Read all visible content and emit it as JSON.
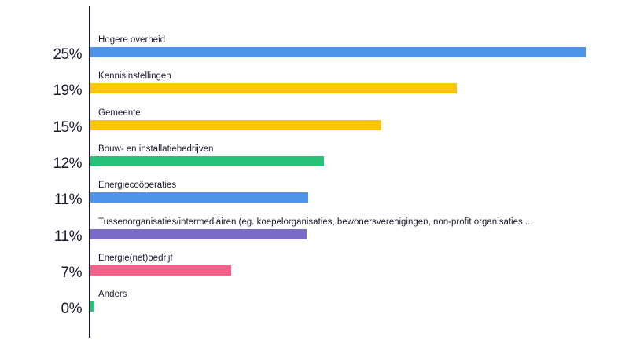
{
  "colors": {
    "blue": "#4e94e8",
    "yellow": "#fcc600",
    "green": "#27c27a",
    "purple": "#7b6bc8",
    "pink": "#fa5f8c",
    "axis": "#1a1a2e"
  },
  "chart_data": {
    "type": "bar",
    "orientation": "horizontal",
    "title": "",
    "xlabel": "",
    "ylabel": "",
    "xlim": [
      0,
      25
    ],
    "grid": false,
    "legend": "none",
    "categories": [
      "Hogere overheid",
      "Kennisinstellingen",
      "Gemeente",
      "Bouw- en installatiebedrijven",
      "Energiecoöperaties",
      "Tussenorganisaties/intermediairen (eg. koepelorganisaties, bewonersverenigingen, non-profit organisaties,...",
      "Energie(net)bedrijf",
      "Anders"
    ],
    "values": [
      25,
      18.5,
      14.7,
      11.8,
      11,
      10.9,
      7.1,
      0.2
    ],
    "value_labels": [
      "25%",
      "19%",
      "15%",
      "12%",
      "11%",
      "11%",
      "7%",
      "0%"
    ],
    "bar_colors": [
      "#4e94e8",
      "#fcc600",
      "#fcc600",
      "#27c27a",
      "#4e94e8",
      "#7b6bc8",
      "#fa5f8c",
      "#27c27a"
    ]
  }
}
